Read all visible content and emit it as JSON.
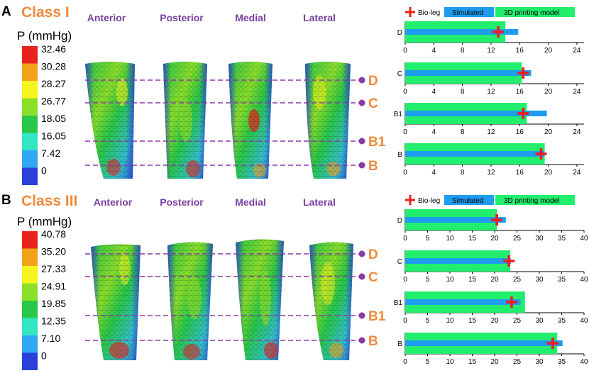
{
  "panels": [
    {
      "letter": "A",
      "class_title": "Class I",
      "views": [
        "Anterior",
        "Posterior",
        "Medial",
        "Lateral"
      ],
      "colorbar": {
        "title": "P (mmHg)",
        "labels": [
          "32.46",
          "30.28",
          "28.27",
          "26.77",
          "18.05",
          "16.05",
          "7.42",
          "0"
        ],
        "colors": [
          "#e8231e",
          "#f5a21b",
          "#f6f51e",
          "#8ce02a",
          "#28c94a",
          "#33e6c3",
          "#31a8f2",
          "#2b40d8"
        ]
      },
      "levels": [
        "D",
        "C",
        "B1",
        "B"
      ]
    },
    {
      "letter": "B",
      "class_title": "Class III",
      "views": [
        "Anterior",
        "Posterior",
        "Medial",
        "Lateral"
      ],
      "colorbar": {
        "title": "P (mmHg)",
        "labels": [
          "40.78",
          "35.20",
          "27.33",
          "24.91",
          "19.85",
          "12.35",
          "7.10",
          "0"
        ],
        "colors": [
          "#e8231e",
          "#f5a21b",
          "#f6f51e",
          "#8ce02a",
          "#28c94a",
          "#33e6c3",
          "#31a8f2",
          "#2b40d8"
        ]
      },
      "levels": [
        "D",
        "C",
        "B1",
        "B"
      ]
    }
  ],
  "legend": {
    "bio_leg": "Bio-leg",
    "simulated": "Simulated",
    "printing": "3D printing model"
  },
  "colors": {
    "printing": "#22ee6e",
    "simulated": "#1e9cf0",
    "bio_leg": "#ee1c1c",
    "level_line": "#8a3aa8",
    "class_title": "#f08a3c"
  },
  "chart_data": [
    {
      "type": "bar",
      "orientation": "horizontal",
      "panel": "A",
      "categories": [
        "D",
        "C",
        "B1",
        "B"
      ],
      "xlim": [
        0,
        25
      ],
      "xticks": [
        0,
        4,
        8,
        12,
        16,
        20,
        24
      ],
      "series": [
        {
          "name": "3D printing model",
          "values": [
            14,
            16.3,
            17,
            19.5
          ]
        },
        {
          "name": "Simulated",
          "values": [
            15.8,
            17.6,
            19.8,
            19.5
          ]
        },
        {
          "name": "Bio-leg",
          "values": [
            13,
            16.5,
            16.5,
            19
          ]
        }
      ]
    },
    {
      "type": "bar",
      "orientation": "horizontal",
      "panel": "B",
      "categories": [
        "D",
        "C",
        "B1",
        "B"
      ],
      "xlim": [
        0,
        40
      ],
      "xticks": [
        0,
        5,
        10,
        15,
        20,
        25,
        30,
        35,
        40
      ],
      "series": [
        {
          "name": "3D printing model",
          "values": [
            20.5,
            23.5,
            26.8,
            34
          ]
        },
        {
          "name": "Simulated",
          "values": [
            22.5,
            23.6,
            25.8,
            35.2
          ]
        },
        {
          "name": "Bio-leg",
          "values": [
            20.5,
            23.2,
            23.8,
            33
          ]
        }
      ]
    }
  ]
}
